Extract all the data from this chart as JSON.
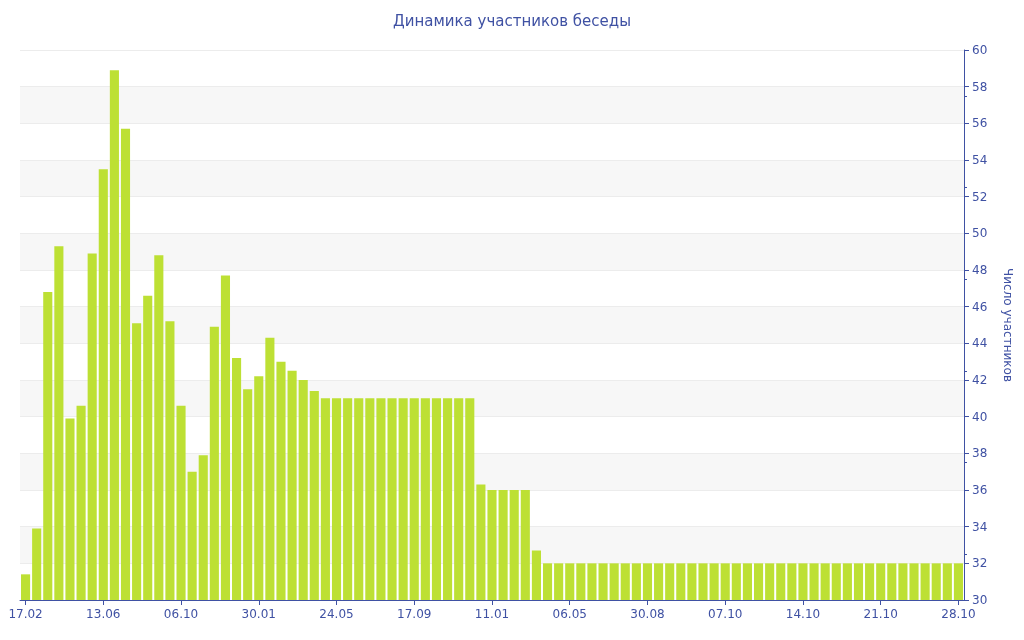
{
  "chart_data": {
    "type": "bar",
    "title": "Динамика участников беседы",
    "ylabel": "Число участников",
    "categories": [
      "17.02",
      null,
      null,
      null,
      null,
      null,
      null,
      "13.06",
      null,
      null,
      null,
      null,
      null,
      null,
      "06.10",
      null,
      null,
      null,
      null,
      null,
      null,
      "30.01",
      null,
      null,
      null,
      null,
      null,
      null,
      "24.05",
      null,
      null,
      null,
      null,
      null,
      null,
      "17.09",
      null,
      null,
      null,
      null,
      null,
      null,
      "11.01",
      null,
      null,
      null,
      null,
      null,
      null,
      "06.05",
      null,
      null,
      null,
      null,
      null,
      null,
      "30.08",
      null,
      null,
      null,
      null,
      null,
      null,
      "07.10",
      null,
      null,
      null,
      null,
      null,
      null,
      "14.10",
      null,
      null,
      null,
      null,
      null,
      null,
      "21.10",
      null,
      null,
      null,
      null,
      null,
      null,
      "28.10"
    ],
    "values": [
      31.4,
      33.9,
      46.8,
      49.3,
      39.9,
      40.6,
      48.9,
      53.5,
      58.9,
      55.7,
      45.1,
      46.6,
      48.8,
      45.2,
      40.6,
      37.0,
      37.9,
      44.9,
      47.7,
      43.2,
      41.5,
      42.2,
      44.3,
      43.0,
      42.5,
      42.0,
      41.4,
      41,
      41,
      41,
      41,
      41,
      41,
      41,
      41,
      41,
      41,
      41,
      41,
      41,
      41,
      36.3,
      36,
      36,
      36,
      36,
      32.7,
      32,
      32,
      32,
      32,
      32,
      32,
      32,
      32,
      32,
      32,
      32,
      32,
      32,
      32,
      32,
      32,
      32,
      32,
      32,
      32,
      32,
      32,
      32,
      32,
      32,
      32,
      32,
      32,
      32,
      32,
      32,
      32,
      32,
      32,
      32,
      32,
      32,
      32
    ],
    "color": "#bde034",
    "ylim": [
      30,
      60
    ],
    "yticks": [
      30,
      32,
      34,
      36,
      38,
      40,
      42,
      44,
      46,
      48,
      50,
      52,
      54,
      56,
      58,
      60
    ],
    "grid": "y"
  }
}
